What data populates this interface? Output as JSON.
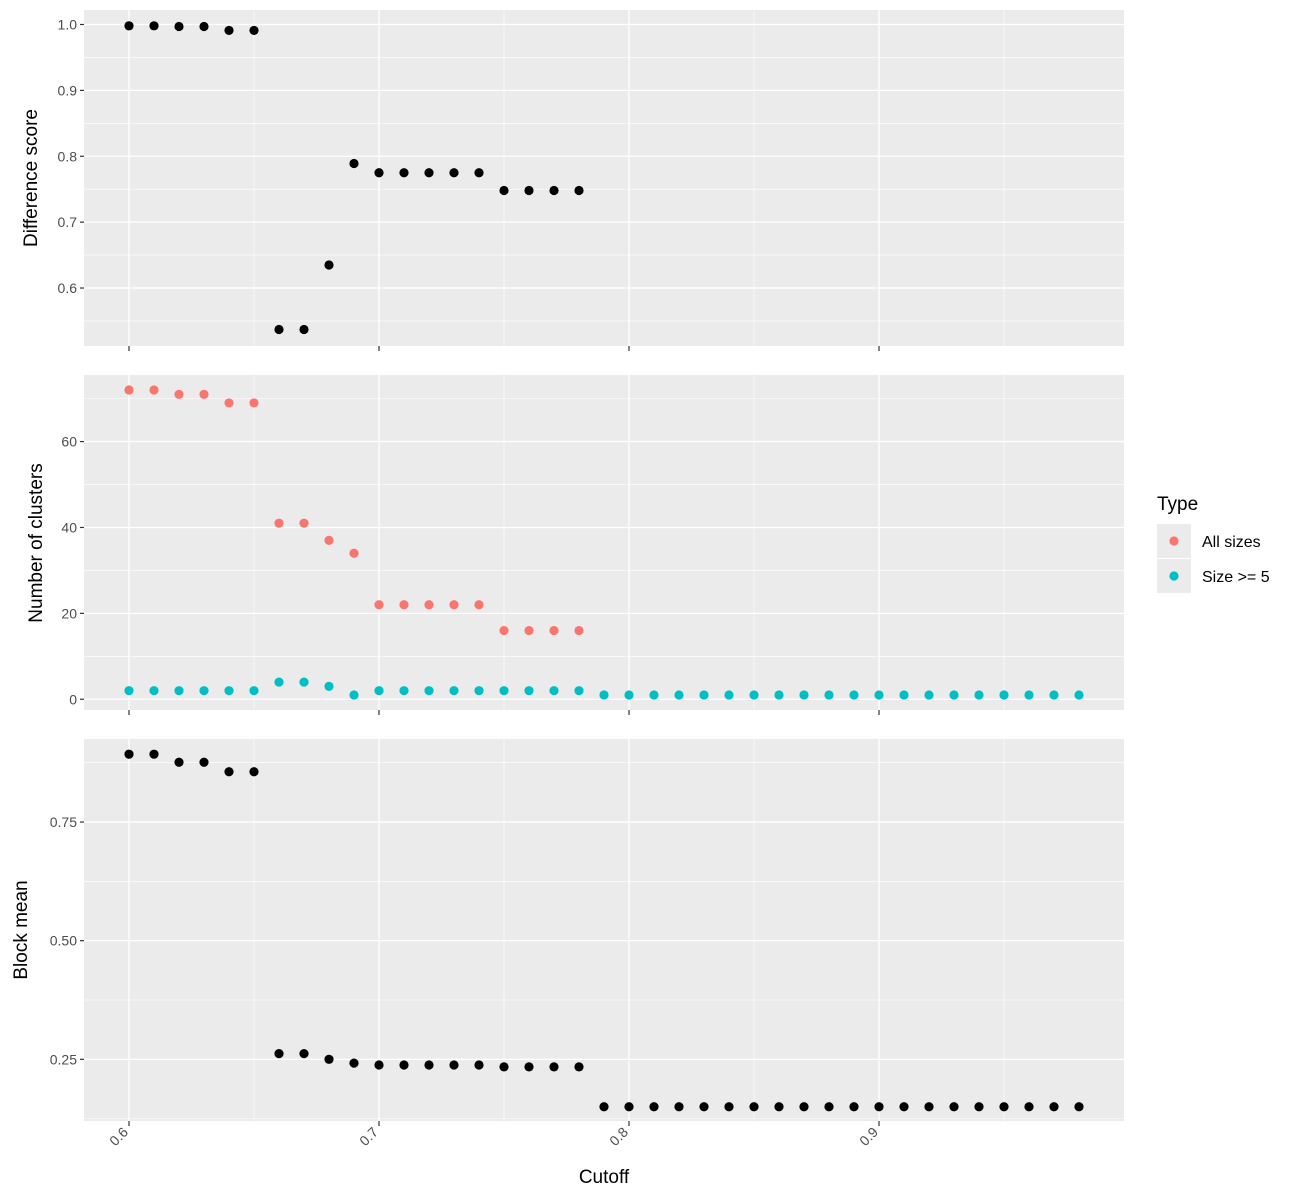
{
  "chart_data": {
    "type": "scatter",
    "xlabel": "Cutoff",
    "xlim": [
      0.582,
      0.998
    ],
    "x_ticks": [
      0.6,
      0.7,
      0.8,
      0.9
    ],
    "x_tick_labels": [
      "0.6",
      "0.7",
      "0.8",
      "0.9"
    ],
    "legend": {
      "title": "Type",
      "position": "right",
      "entries": [
        {
          "label": "All sizes",
          "color": "#F8766D"
        },
        {
          "label": "Size >= 5",
          "color": "#00BFC4"
        }
      ]
    },
    "panels": [
      {
        "ylabel": "Difference score",
        "ylim": [
          0.512,
          1.022
        ],
        "y_ticks": [
          0.6,
          0.7,
          0.8,
          0.9,
          1.0
        ],
        "y_tick_labels": [
          "0.6",
          "0.7",
          "0.8",
          "0.9",
          "1.0"
        ],
        "series": [
          {
            "name": "Difference score",
            "color": "#000000",
            "x": [
              0.6,
              0.61,
              0.62,
              0.63,
              0.64,
              0.65,
              0.66,
              0.67,
              0.68,
              0.69,
              0.7,
              0.71,
              0.72,
              0.73,
              0.74,
              0.75,
              0.76,
              0.77,
              0.78
            ],
            "y": [
              0.998,
              0.998,
              0.997,
              0.997,
              0.991,
              0.991,
              0.537,
              0.537,
              0.635,
              0.789,
              0.775,
              0.775,
              0.775,
              0.775,
              0.775,
              0.748,
              0.748,
              0.748,
              0.748
            ]
          }
        ]
      },
      {
        "ylabel": "Number of clusters",
        "ylim": [
          -2.5,
          75.5
        ],
        "y_ticks": [
          0,
          20,
          40,
          60
        ],
        "y_tick_labels": [
          "0",
          "20",
          "40",
          "60"
        ],
        "series": [
          {
            "name": "All sizes",
            "color": "#F8766D",
            "x": [
              0.6,
              0.61,
              0.62,
              0.63,
              0.64,
              0.65,
              0.66,
              0.67,
              0.68,
              0.69,
              0.7,
              0.71,
              0.72,
              0.73,
              0.74,
              0.75,
              0.76,
              0.77,
              0.78
            ],
            "y": [
              72,
              72,
              71,
              71,
              69,
              69,
              41,
              41,
              37,
              34,
              22,
              22,
              22,
              22,
              22,
              16,
              16,
              16,
              16
            ]
          },
          {
            "name": "Size >= 5",
            "color": "#00BFC4",
            "x": [
              0.6,
              0.61,
              0.62,
              0.63,
              0.64,
              0.65,
              0.66,
              0.67,
              0.68,
              0.69,
              0.7,
              0.71,
              0.72,
              0.73,
              0.74,
              0.75,
              0.76,
              0.77,
              0.78,
              0.79,
              0.8,
              0.81,
              0.82,
              0.83,
              0.84,
              0.85,
              0.86,
              0.87,
              0.88,
              0.89,
              0.9,
              0.91,
              0.92,
              0.93,
              0.94,
              0.95,
              0.96,
              0.97,
              0.98
            ],
            "y": [
              2,
              2,
              2,
              2,
              2,
              2,
              4,
              4,
              3,
              1,
              2,
              2,
              2,
              2,
              2,
              2,
              2,
              2,
              2,
              1,
              1,
              1,
              1,
              1,
              1,
              1,
              1,
              1,
              1,
              1,
              1,
              1,
              1,
              1,
              1,
              1,
              1,
              1,
              1
            ]
          }
        ]
      },
      {
        "ylabel": "Block mean",
        "ylim": [
          0.12,
          0.925
        ],
        "y_ticks": [
          0.25,
          0.5,
          0.75
        ],
        "y_tick_labels": [
          "0.25",
          "0.50",
          "0.75"
        ],
        "series": [
          {
            "name": "Block mean",
            "color": "#000000",
            "x": [
              0.6,
              0.61,
              0.62,
              0.63,
              0.64,
              0.65,
              0.66,
              0.67,
              0.68,
              0.69,
              0.7,
              0.71,
              0.72,
              0.73,
              0.74,
              0.75,
              0.76,
              0.77,
              0.78,
              0.79,
              0.8,
              0.81,
              0.82,
              0.83,
              0.84,
              0.85,
              0.86,
              0.87,
              0.88,
              0.89,
              0.9,
              0.91,
              0.92,
              0.93,
              0.94,
              0.95,
              0.96,
              0.97,
              0.98
            ],
            "y": [
              0.893,
              0.893,
              0.876,
              0.876,
              0.856,
              0.856,
              0.262,
              0.262,
              0.25,
              0.242,
              0.238,
              0.238,
              0.238,
              0.238,
              0.238,
              0.234,
              0.234,
              0.234,
              0.234,
              0.15,
              0.15,
              0.15,
              0.15,
              0.15,
              0.15,
              0.15,
              0.15,
              0.15,
              0.15,
              0.15,
              0.15,
              0.15,
              0.15,
              0.15,
              0.15,
              0.15,
              0.15,
              0.15,
              0.15
            ]
          }
        ]
      }
    ]
  }
}
